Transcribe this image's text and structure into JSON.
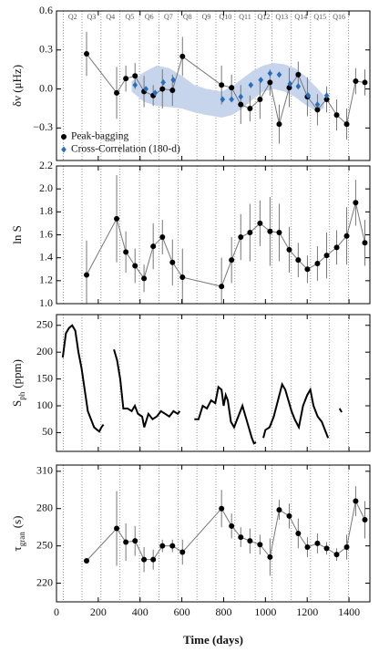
{
  "quarters": {
    "labels": [
      "Q2",
      "Q3",
      "Q4",
      "Q5",
      "Q6",
      "Q7",
      "Q8",
      "Q9",
      "Q10",
      "Q11",
      "Q12",
      "Q13",
      "Q14",
      "Q15",
      "Q16"
    ],
    "boundaries": [
      33,
      122,
      213,
      304,
      397,
      490,
      582,
      672,
      763,
      854,
      951,
      1032,
      1124,
      1216,
      1307,
      1398
    ]
  },
  "chart_data": [
    {
      "type": "scatter",
      "y_label": "δν (μHz)",
      "xlim": [
        0,
        1500
      ],
      "xticks": [
        0,
        200,
        400,
        600,
        800,
        1000,
        1200,
        1400
      ],
      "ylim": [
        -0.55,
        0.6
      ],
      "yticks": [
        {
          "value": 0.6,
          "label": "0.6"
        },
        {
          "value": 0.3,
          "label": "0.3"
        },
        {
          "value": 0,
          "label": "0.0"
        },
        {
          "value": -0.3,
          "label": "−0.3"
        }
      ],
      "legend": "lower left",
      "band": {
        "color": "#c6d4ec",
        "x": [
          360,
          420,
          480,
          540,
          600,
          660,
          720,
          790,
          840,
          890,
          940,
          990,
          1040,
          1090,
          1140,
          1190,
          1240,
          1280
        ],
        "upper": [
          0.06,
          0.13,
          0.18,
          0.16,
          0.1,
          0.03,
          0.0,
          -0.02,
          0.02,
          0.08,
          0.14,
          0.18,
          0.2,
          0.19,
          0.16,
          0.1,
          0.02,
          -0.05
        ],
        "lower": [
          -0.02,
          -0.1,
          -0.13,
          -0.14,
          -0.15,
          -0.18,
          -0.2,
          -0.22,
          -0.2,
          -0.15,
          -0.08,
          -0.02,
          0.0,
          -0.02,
          -0.06,
          -0.12,
          -0.17,
          -0.15
        ]
      },
      "series": [
        {
          "name": "Peak-bagging",
          "color": "#000000",
          "line_color": "#777777",
          "marker": "circle",
          "x": [
            144,
            288,
            332,
            376,
            419,
            463,
            507,
            555,
            603,
            790,
            838,
            882,
            926,
            974,
            1022,
            1066,
            1114,
            1157,
            1201,
            1249,
            1293,
            1341,
            1389,
            1432,
            1476
          ],
          "values": [
            0.27,
            -0.03,
            0.08,
            0.1,
            -0.02,
            -0.05,
            0.0,
            -0.01,
            0.25,
            0.03,
            0.01,
            -0.12,
            -0.15,
            -0.08,
            0.05,
            -0.27,
            0.01,
            0.11,
            -0.06,
            -0.16,
            -0.08,
            -0.2,
            -0.27,
            0.06,
            0.05
          ],
          "errors": [
            0.17,
            0.2,
            0.1,
            0.1,
            0.12,
            0.08,
            0.15,
            0.12,
            0.15,
            0.15,
            0.1,
            0.15,
            0.1,
            0.15,
            0.1,
            0.15,
            0.15,
            0.1,
            0.15,
            0.12,
            0.1,
            0.12,
            0.12,
            0.1,
            0.1
          ]
        },
        {
          "name": "Cross-Correlation (180-d)",
          "color": "#2a6ebb",
          "marker": "diamond",
          "x": [
            376,
            428,
            472,
            511,
            559,
            795,
            838,
            882,
            930,
            978,
            1022,
            1066,
            1118,
            1157,
            1205,
            1249,
            1293
          ],
          "values": [
            0.03,
            0.0,
            -0.03,
            0.05,
            0.07,
            -0.08,
            -0.08,
            -0.06,
            0.03,
            0.07,
            0.12,
            0.11,
            0.04,
            0.02,
            -0.05,
            -0.12,
            -0.05
          ]
        }
      ]
    },
    {
      "type": "scatter",
      "y_label": "ln S",
      "xlim": [
        0,
        1500
      ],
      "xticks": [
        0,
        200,
        400,
        600,
        800,
        1000,
        1200,
        1400
      ],
      "ylim": [
        1.0,
        2.2
      ],
      "yticks": [
        {
          "value": 1.0,
          "label": "1.0"
        },
        1.2,
        1.4,
        1.6,
        1.8,
        {
          "value": 2.0,
          "label": "2.0"
        },
        2.2
      ],
      "series": [
        {
          "name": "Peak-bagging",
          "color": "#000000",
          "line_color": "#777777",
          "marker": "circle",
          "x": [
            144,
            288,
            332,
            376,
            419,
            463,
            507,
            555,
            603,
            790,
            838,
            882,
            926,
            974,
            1022,
            1066,
            1114,
            1157,
            1201,
            1249,
            1293,
            1341,
            1389,
            1432,
            1476
          ],
          "values": [
            1.25,
            1.74,
            1.45,
            1.33,
            1.22,
            1.5,
            1.58,
            1.36,
            1.23,
            1.15,
            1.38,
            1.58,
            1.62,
            1.7,
            1.63,
            1.62,
            1.47,
            1.38,
            1.3,
            1.35,
            1.42,
            1.49,
            1.59,
            1.88,
            1.53
          ],
          "errors": [
            0.3,
            0.38,
            0.18,
            0.15,
            0.12,
            0.2,
            0.15,
            0.2,
            0.25,
            0.25,
            0.2,
            0.2,
            0.25,
            0.2,
            0.3,
            0.25,
            0.2,
            0.15,
            0.12,
            0.15,
            0.2,
            0.15,
            0.25,
            0.2,
            0.2
          ]
        }
      ]
    },
    {
      "type": "line",
      "y_label": "S",
      "y_label_sub": "ph",
      "y_label_unit": "(ppm)",
      "xlim": [
        0,
        1500
      ],
      "xticks": [
        0,
        200,
        400,
        600,
        800,
        1000,
        1200,
        1400
      ],
      "ylim": [
        15,
        270
      ],
      "yticks": [
        50,
        100,
        150,
        200,
        250
      ],
      "series": [
        {
          "color": "#000000",
          "x": [
            30,
            45,
            60,
            75,
            90,
            105,
            120,
            135,
            150,
            165,
            180,
            195,
            205,
            215,
            225,
            250,
            275,
            290,
            305,
            320,
            340,
            360,
            375,
            390,
            410,
            420,
            440,
            460,
            480,
            500,
            520,
            540,
            560,
            580,
            590,
            620,
            660,
            680,
            700,
            720,
            740,
            760,
            775,
            790,
            800,
            810,
            820,
            835,
            850,
            870,
            890,
            905,
            920,
            935,
            945,
            955,
            975,
            990,
            1000,
            1020,
            1040,
            1060,
            1080,
            1095,
            1110,
            1125,
            1140,
            1160,
            1180,
            1200,
            1215,
            1230,
            1250,
            1270,
            1285,
            1300,
            1330,
            1355,
            1365
          ],
          "values": [
            190,
            235,
            245,
            250,
            240,
            200,
            170,
            130,
            90,
            75,
            60,
            55,
            52,
            60,
            65,
            null,
            205,
            185,
            150,
            95,
            95,
            90,
            100,
            85,
            80,
            60,
            85,
            75,
            80,
            90,
            85,
            80,
            90,
            85,
            90,
            null,
            75,
            75,
            100,
            95,
            110,
            105,
            135,
            130,
            100,
            120,
            110,
            70,
            60,
            80,
            100,
            80,
            60,
            40,
            30,
            32,
            null,
            40,
            55,
            60,
            80,
            110,
            140,
            130,
            110,
            90,
            75,
            60,
            100,
            120,
            130,
            100,
            80,
            70,
            55,
            40,
            null,
            95,
            88
          ]
        }
      ]
    },
    {
      "type": "scatter",
      "y_label": "τ",
      "y_label_sub": "gran",
      "y_label_unit": "(s)",
      "x_label": "Time (days)",
      "xlim": [
        0,
        1500
      ],
      "xticks": [
        0,
        200,
        400,
        600,
        800,
        1000,
        1200,
        1400
      ],
      "ylim": [
        205,
        315
      ],
      "yticks": [
        220,
        250,
        280,
        310
      ],
      "series": [
        {
          "name": "Peak-bagging",
          "color": "#000000",
          "line_color": "#777777",
          "marker": "circle",
          "x": [
            144,
            288,
            332,
            376,
            419,
            463,
            507,
            555,
            603,
            790,
            838,
            882,
            926,
            974,
            1022,
            1066,
            1114,
            1157,
            1201,
            1249,
            1293,
            1341,
            1389,
            1432,
            1476
          ],
          "values": [
            238,
            264,
            253,
            254,
            239,
            239,
            250,
            250,
            245,
            280,
            266,
            257,
            254,
            251,
            241,
            279,
            274,
            260,
            249,
            252,
            248,
            243,
            249,
            286,
            271
          ],
          "errors": [
            2,
            30,
            15,
            12,
            10,
            8,
            5,
            5,
            10,
            15,
            10,
            8,
            10,
            8,
            15,
            8,
            10,
            12,
            8,
            8,
            5,
            5,
            10,
            12,
            15
          ]
        }
      ]
    }
  ]
}
